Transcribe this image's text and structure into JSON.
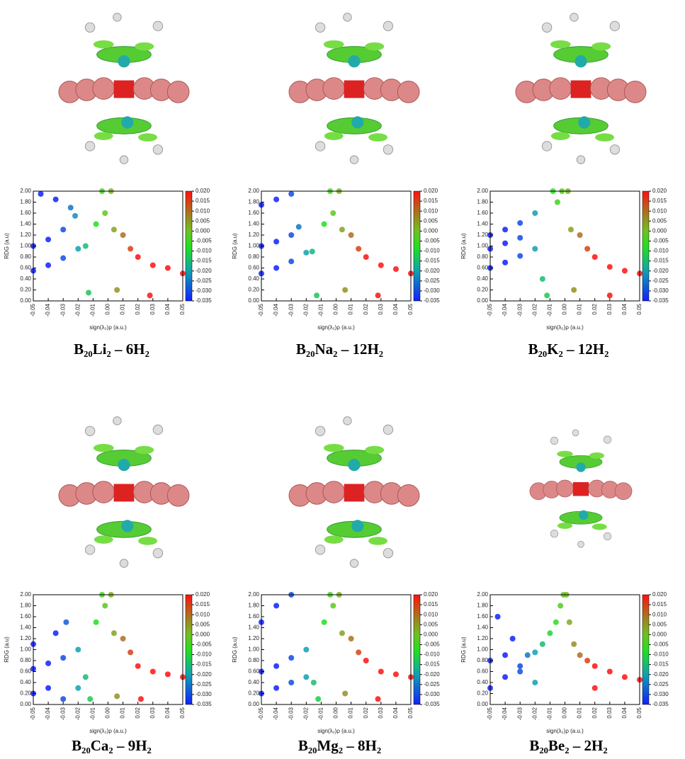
{
  "chart_data": [
    {
      "type": "scatter",
      "caption": "B₂₀Li₂ – 6H₂",
      "xlabel": "sign(λ₂)ρ (a.u.)",
      "ylabel": "RDG (a.u)",
      "x": [
        -0.05,
        -0.04,
        -0.03,
        -0.02,
        -0.05,
        -0.04,
        -0.03,
        -0.022,
        -0.045,
        -0.035,
        -0.025,
        -0.015,
        -0.013,
        -0.008,
        -0.004,
        -0.002,
        0.002,
        0.004,
        0.006,
        0.01,
        0.015,
        0.02,
        0.03,
        0.04,
        0.05,
        0.028
      ],
      "values": [
        0.55,
        0.65,
        0.78,
        0.95,
        1.0,
        1.12,
        1.3,
        1.55,
        1.95,
        1.85,
        1.7,
        1.0,
        0.15,
        1.4,
        2.0,
        1.6,
        2.0,
        1.3,
        0.2,
        1.2,
        0.95,
        0.8,
        0.65,
        0.6,
        0.5,
        0.1
      ],
      "xlim": [
        -0.05,
        0.05
      ],
      "ylim": [
        0,
        2
      ],
      "xticks": [
        -0.05,
        -0.04,
        -0.03,
        -0.02,
        -0.01,
        {
          "value": 0,
          "label": "0.00"
        },
        0.01,
        0.02,
        0.03,
        0.04,
        0.05
      ],
      "yticks": [
        {
          "value": 0,
          "label": "0.00"
        },
        {
          "value": 0.2,
          "label": "0.20"
        },
        {
          "value": 0.4,
          "label": "0.40"
        },
        {
          "value": 0.6,
          "label": "0.60"
        },
        {
          "value": 0.8,
          "label": "0.80"
        },
        {
          "value": 1,
          "label": "1.00"
        },
        {
          "value": 1.2,
          "label": "1.20"
        },
        {
          "value": 1.4,
          "label": "1.40"
        },
        {
          "value": 1.6,
          "label": "1.60"
        },
        {
          "value": 1.8,
          "label": "1.80"
        },
        {
          "value": 2,
          "label": "2.00"
        }
      ],
      "clim": [
        -0.035,
        0.02
      ],
      "cticks": [
        {
          "value": 0.02,
          "label": "0.020"
        },
        0.015,
        {
          "value": 0.01,
          "label": "0.010"
        },
        0.005,
        {
          "value": 0,
          "label": "0.000"
        },
        -0.005,
        {
          "value": -0.01,
          "label": "-0.010"
        },
        -0.015,
        {
          "value": -0.02,
          "label": "-0.020"
        },
        -0.025,
        {
          "value": -0.03,
          "label": "-0.030"
        },
        -0.035
      ]
    },
    {
      "type": "scatter",
      "caption": "B₂₀Na₂ – 12H₂",
      "xlabel": "sign(λ₂)ρ (a.u.)",
      "ylabel": "RDG (a.u)",
      "x": [
        -0.05,
        -0.04,
        -0.03,
        -0.02,
        -0.05,
        -0.04,
        -0.03,
        -0.025,
        -0.05,
        -0.04,
        -0.03,
        -0.016,
        -0.013,
        -0.008,
        -0.004,
        -0.002,
        0.002,
        0.004,
        0.006,
        0.01,
        0.015,
        0.02,
        0.03,
        0.04,
        0.05,
        0.028
      ],
      "values": [
        0.5,
        0.6,
        0.72,
        0.88,
        1.0,
        1.08,
        1.2,
        1.35,
        1.75,
        1.85,
        1.95,
        0.9,
        0.1,
        1.4,
        2.0,
        1.6,
        2.0,
        1.3,
        0.2,
        1.2,
        0.95,
        0.8,
        0.65,
        0.58,
        0.5,
        0.1
      ],
      "xlim": [
        -0.05,
        0.05
      ],
      "ylim": [
        0,
        2
      ],
      "xticks": [
        -0.05,
        -0.04,
        -0.03,
        -0.02,
        -0.01,
        {
          "value": 0,
          "label": "0.00"
        },
        0.01,
        0.02,
        0.03,
        0.04,
        0.05
      ],
      "yticks": [
        {
          "value": 0,
          "label": "0.00"
        },
        {
          "value": 0.2,
          "label": "0.20"
        },
        {
          "value": 0.4,
          "label": "0.40"
        },
        {
          "value": 0.6,
          "label": "0.60"
        },
        {
          "value": 0.8,
          "label": "0.80"
        },
        {
          "value": 1,
          "label": "1.00"
        },
        {
          "value": 1.2,
          "label": "1.20"
        },
        {
          "value": 1.4,
          "label": "1.40"
        },
        {
          "value": 1.6,
          "label": "1.60"
        },
        {
          "value": 1.8,
          "label": "1.80"
        },
        {
          "value": 2,
          "label": "2.00"
        }
      ],
      "clim": [
        -0.035,
        0.02
      ],
      "cticks": [
        {
          "value": 0.02,
          "label": "0.020"
        },
        0.015,
        {
          "value": 0.01,
          "label": "0.010"
        },
        0.005,
        {
          "value": 0,
          "label": "0.000"
        },
        -0.005,
        {
          "value": -0.01,
          "label": "-0.010"
        },
        -0.015,
        {
          "value": -0.02,
          "label": "-0.020"
        },
        -0.025,
        {
          "value": -0.03,
          "label": "-0.030"
        },
        -0.035
      ]
    },
    {
      "type": "scatter",
      "caption": "B₂₀K₂ – 12H₂",
      "xlabel": "sign(λ₂)ρ (a.u.)",
      "ylabel": "RDG (a.u)",
      "x": [
        -0.05,
        -0.04,
        -0.03,
        -0.02,
        -0.05,
        -0.04,
        -0.03,
        -0.05,
        -0.04,
        -0.03,
        -0.02,
        -0.015,
        -0.012,
        -0.008,
        -0.005,
        -0.002,
        0.002,
        0.004,
        0.006,
        0.01,
        0.015,
        0.02,
        0.03,
        0.04,
        0.05,
        0.03
      ],
      "values": [
        0.6,
        0.7,
        0.82,
        0.95,
        0.95,
        1.05,
        1.15,
        1.2,
        1.3,
        1.42,
        1.6,
        0.4,
        0.1,
        2.0,
        1.8,
        2.0,
        2.0,
        1.3,
        0.2,
        1.2,
        0.95,
        0.8,
        0.62,
        0.55,
        0.5,
        0.1
      ],
      "xlim": [
        -0.05,
        0.05
      ],
      "ylim": [
        0,
        2
      ],
      "xticks": [
        -0.05,
        -0.04,
        -0.03,
        -0.02,
        -0.01,
        {
          "value": 0,
          "label": "0.00"
        },
        0.01,
        0.02,
        0.03,
        0.04,
        0.05
      ],
      "yticks": [
        {
          "value": 0,
          "label": "0.00"
        },
        {
          "value": 0.2,
          "label": "0.20"
        },
        {
          "value": 0.4,
          "label": "0.40"
        },
        {
          "value": 0.6,
          "label": "0.60"
        },
        {
          "value": 0.8,
          "label": "0.80"
        },
        {
          "value": 1,
          "label": "1.00"
        },
        {
          "value": 1.2,
          "label": "1.20"
        },
        {
          "value": 1.4,
          "label": "1.40"
        },
        {
          "value": 1.6,
          "label": "1.60"
        },
        {
          "value": 1.8,
          "label": "1.80"
        },
        {
          "value": 2,
          "label": "2.00"
        }
      ],
      "clim": [
        -0.035,
        0.02
      ],
      "cticks": [
        {
          "value": 0.02,
          "label": "0.020"
        },
        0.015,
        {
          "value": 0.01,
          "label": "0.010"
        },
        0.005,
        {
          "value": 0,
          "label": "0.000"
        },
        -0.005,
        {
          "value": -0.01,
          "label": "-0.010"
        },
        -0.015,
        {
          "value": -0.02,
          "label": "-0.020"
        },
        -0.025,
        {
          "value": -0.03,
          "label": "-0.030"
        },
        -0.035
      ]
    },
    {
      "type": "scatter",
      "caption": "B₂₀Ca₂ – 9H₂",
      "xlabel": "sign(λ₂)ρ (a.u.)",
      "ylabel": "RDG (a.u)",
      "x": [
        -0.05,
        -0.04,
        -0.03,
        -0.02,
        -0.05,
        -0.04,
        -0.03,
        -0.02,
        -0.05,
        -0.035,
        -0.028,
        -0.015,
        -0.012,
        -0.008,
        -0.004,
        -0.002,
        0.002,
        0.004,
        0.006,
        0.01,
        0.015,
        0.02,
        0.03,
        0.04,
        0.05,
        0.022
      ],
      "values": [
        0.2,
        0.3,
        0.1,
        0.3,
        0.65,
        0.75,
        0.85,
        1.0,
        1.1,
        1.3,
        1.5,
        0.5,
        0.1,
        1.5,
        2.0,
        1.8,
        2.0,
        1.3,
        0.15,
        1.2,
        0.95,
        0.7,
        0.6,
        0.55,
        0.5,
        0.1
      ],
      "xlim": [
        -0.05,
        0.05
      ],
      "ylim": [
        0,
        2
      ],
      "xticks": [
        -0.05,
        -0.04,
        -0.03,
        -0.02,
        -0.01,
        {
          "value": 0,
          "label": "0.00"
        },
        0.01,
        0.02,
        0.03,
        0.04,
        0.05
      ],
      "yticks": [
        {
          "value": 0,
          "label": "0.00"
        },
        {
          "value": 0.2,
          "label": "0.20"
        },
        {
          "value": 0.4,
          "label": "0.40"
        },
        {
          "value": 0.6,
          "label": "0.60"
        },
        {
          "value": 0.8,
          "label": "0.80"
        },
        {
          "value": 1,
          "label": "1.00"
        },
        {
          "value": 1.2,
          "label": "1.20"
        },
        {
          "value": 1.4,
          "label": "1.40"
        },
        {
          "value": 1.6,
          "label": "1.60"
        },
        {
          "value": 1.8,
          "label": "1.80"
        },
        {
          "value": 2,
          "label": "2.00"
        }
      ],
      "clim": [
        -0.035,
        0.02
      ],
      "cticks": [
        {
          "value": 0.02,
          "label": "0.020"
        },
        0.015,
        {
          "value": 0.01,
          "label": "0.010"
        },
        0.005,
        {
          "value": 0,
          "label": "0.000"
        },
        -0.005,
        {
          "value": -0.01,
          "label": "-0.010"
        },
        -0.015,
        {
          "value": -0.02,
          "label": "-0.020"
        },
        -0.025,
        {
          "value": -0.03,
          "label": "-0.030"
        },
        -0.035
      ]
    },
    {
      "type": "scatter",
      "caption": "B₂₀Mg₂ – 8H₂",
      "xlabel": "sign(λ₂)ρ (a.u.)",
      "ylabel": "RDG (a.u)",
      "x": [
        -0.05,
        -0.04,
        -0.03,
        -0.02,
        -0.05,
        -0.04,
        -0.03,
        -0.02,
        -0.05,
        -0.04,
        -0.03,
        -0.015,
        -0.012,
        -0.008,
        -0.004,
        -0.002,
        0.002,
        0.004,
        0.006,
        0.01,
        0.015,
        0.02,
        0.03,
        0.04,
        0.05,
        0.028
      ],
      "values": [
        0.2,
        0.3,
        0.4,
        0.5,
        0.6,
        0.7,
        0.85,
        1.0,
        1.5,
        1.8,
        2.0,
        0.4,
        0.1,
        1.5,
        2.0,
        1.8,
        2.0,
        1.3,
        0.2,
        1.2,
        0.95,
        0.8,
        0.6,
        0.55,
        0.5,
        0.1
      ],
      "xlim": [
        -0.05,
        0.05
      ],
      "ylim": [
        0,
        2
      ],
      "xticks": [
        -0.05,
        -0.04,
        -0.03,
        -0.02,
        -0.01,
        {
          "value": 0,
          "label": "0.00"
        },
        0.01,
        0.02,
        0.03,
        0.04,
        0.05
      ],
      "yticks": [
        {
          "value": 0,
          "label": "0.00"
        },
        {
          "value": 0.2,
          "label": "0.20"
        },
        {
          "value": 0.4,
          "label": "0.40"
        },
        {
          "value": 0.6,
          "label": "0.60"
        },
        {
          "value": 0.8,
          "label": "0.80"
        },
        {
          "value": 1,
          "label": "1.00"
        },
        {
          "value": 1.2,
          "label": "1.20"
        },
        {
          "value": 1.4,
          "label": "1.40"
        },
        {
          "value": 1.6,
          "label": "1.60"
        },
        {
          "value": 1.8,
          "label": "1.80"
        },
        {
          "value": 2,
          "label": "2.00"
        }
      ],
      "clim": [
        -0.035,
        0.02
      ],
      "cticks": [
        {
          "value": 0.02,
          "label": "0.020"
        },
        0.015,
        {
          "value": 0.01,
          "label": "0.010"
        },
        0.005,
        {
          "value": 0,
          "label": "0.000"
        },
        -0.005,
        {
          "value": -0.01,
          "label": "-0.010"
        },
        -0.015,
        {
          "value": -0.02,
          "label": "-0.020"
        },
        -0.025,
        {
          "value": -0.03,
          "label": "-0.030"
        },
        -0.035
      ]
    },
    {
      "type": "scatter",
      "caption": "B₂₀Be₂ – 2H₂",
      "xlabel": "sign(λ₂)ρ (a.u.)",
      "ylabel": "RDG (a.u)",
      "x": [
        -0.05,
        -0.045,
        -0.04,
        -0.035,
        -0.03,
        -0.025,
        -0.02,
        -0.05,
        -0.04,
        -0.03,
        -0.02,
        -0.015,
        -0.01,
        -0.006,
        -0.003,
        -0.001,
        0.001,
        0.003,
        0.006,
        0.01,
        0.015,
        0.02,
        0.03,
        0.04,
        0.05,
        0.02
      ],
      "values": [
        0.3,
        1.6,
        0.5,
        1.2,
        0.7,
        0.9,
        0.95,
        0.8,
        0.9,
        0.6,
        0.4,
        1.1,
        1.3,
        1.5,
        1.8,
        2.0,
        2.0,
        1.5,
        1.1,
        0.9,
        0.8,
        0.7,
        0.6,
        0.5,
        0.45,
        0.3
      ],
      "xlim": [
        -0.05,
        0.05
      ],
      "ylim": [
        0,
        2
      ],
      "xticks": [
        -0.05,
        -0.04,
        -0.03,
        -0.02,
        -0.01,
        {
          "value": 0,
          "label": "0.00"
        },
        0.01,
        0.02,
        0.03,
        0.04,
        0.05
      ],
      "yticks": [
        {
          "value": 0,
          "label": "0.00"
        },
        {
          "value": 0.2,
          "label": "0.20"
        },
        {
          "value": 0.4,
          "label": "0.40"
        },
        {
          "value": 0.6,
          "label": "0.60"
        },
        {
          "value": 0.8,
          "label": "0.80"
        },
        {
          "value": 1,
          "label": "1.00"
        },
        {
          "value": 1.2,
          "label": "1.20"
        },
        {
          "value": 1.4,
          "label": "1.40"
        },
        {
          "value": 1.6,
          "label": "1.60"
        },
        {
          "value": 1.8,
          "label": "1.80"
        },
        {
          "value": 2,
          "label": "2.00"
        }
      ],
      "clim": [
        -0.035,
        0.02
      ],
      "cticks": [
        {
          "value": 0.02,
          "label": "0.020"
        },
        0.015,
        {
          "value": 0.01,
          "label": "0.010"
        },
        0.005,
        {
          "value": 0,
          "label": "0.000"
        },
        -0.005,
        {
          "value": -0.01,
          "label": "-0.010"
        },
        -0.015,
        {
          "value": -0.02,
          "label": "-0.020"
        },
        -0.025,
        {
          "value": -0.03,
          "label": "-0.030"
        },
        -0.035
      ]
    }
  ]
}
